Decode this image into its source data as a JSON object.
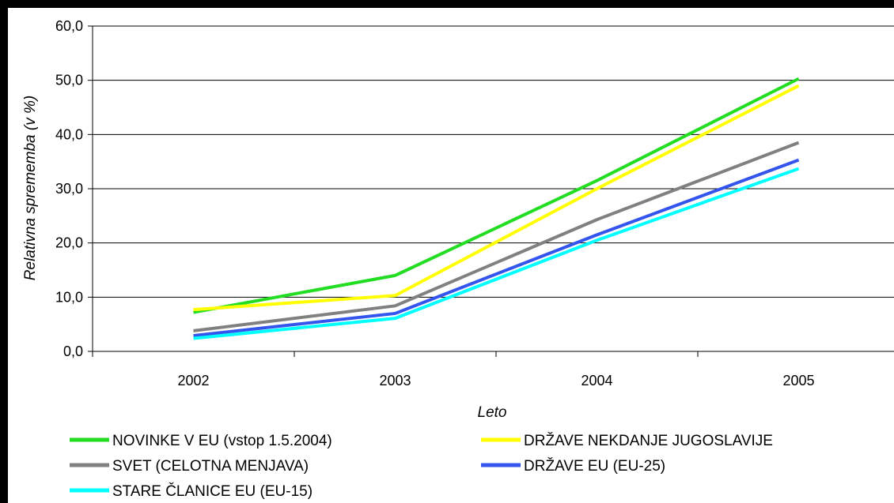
{
  "chart_data": {
    "type": "line",
    "title": "",
    "xlabel": "Leto",
    "ylabel": "Relativna sprememba (v %)",
    "categories": [
      "2002",
      "2003",
      "2004",
      "2005"
    ],
    "ylim": [
      0,
      60
    ],
    "yticks": [
      "0,0",
      "10,0",
      "20,0",
      "30,0",
      "40,0",
      "50,0",
      "60,0"
    ],
    "grid": true,
    "legend_position": "bottom",
    "series": [
      {
        "name": "NOVINKE V EU (vstop 1.5.2004)",
        "color": "#22dd22",
        "values": [
          7.2,
          14.0,
          31.5,
          50.3
        ]
      },
      {
        "name": "DRŽAVE NEKDANJE JUGOSLAVIJE",
        "color": "#ffff00",
        "values": [
          7.7,
          10.3,
          30.0,
          49.0
        ]
      },
      {
        "name": "SVET (CELOTNA MENJAVA)",
        "color": "#808080",
        "values": [
          3.8,
          8.4,
          24.3,
          38.5
        ]
      },
      {
        "name": "DRŽAVE EU (EU-25)",
        "color": "#3355ee",
        "values": [
          2.9,
          7.0,
          21.5,
          35.3
        ]
      },
      {
        "name": "STARE ČLANICE EU (EU-15)",
        "color": "#00ffff",
        "values": [
          2.4,
          6.1,
          20.5,
          33.7
        ]
      }
    ]
  }
}
